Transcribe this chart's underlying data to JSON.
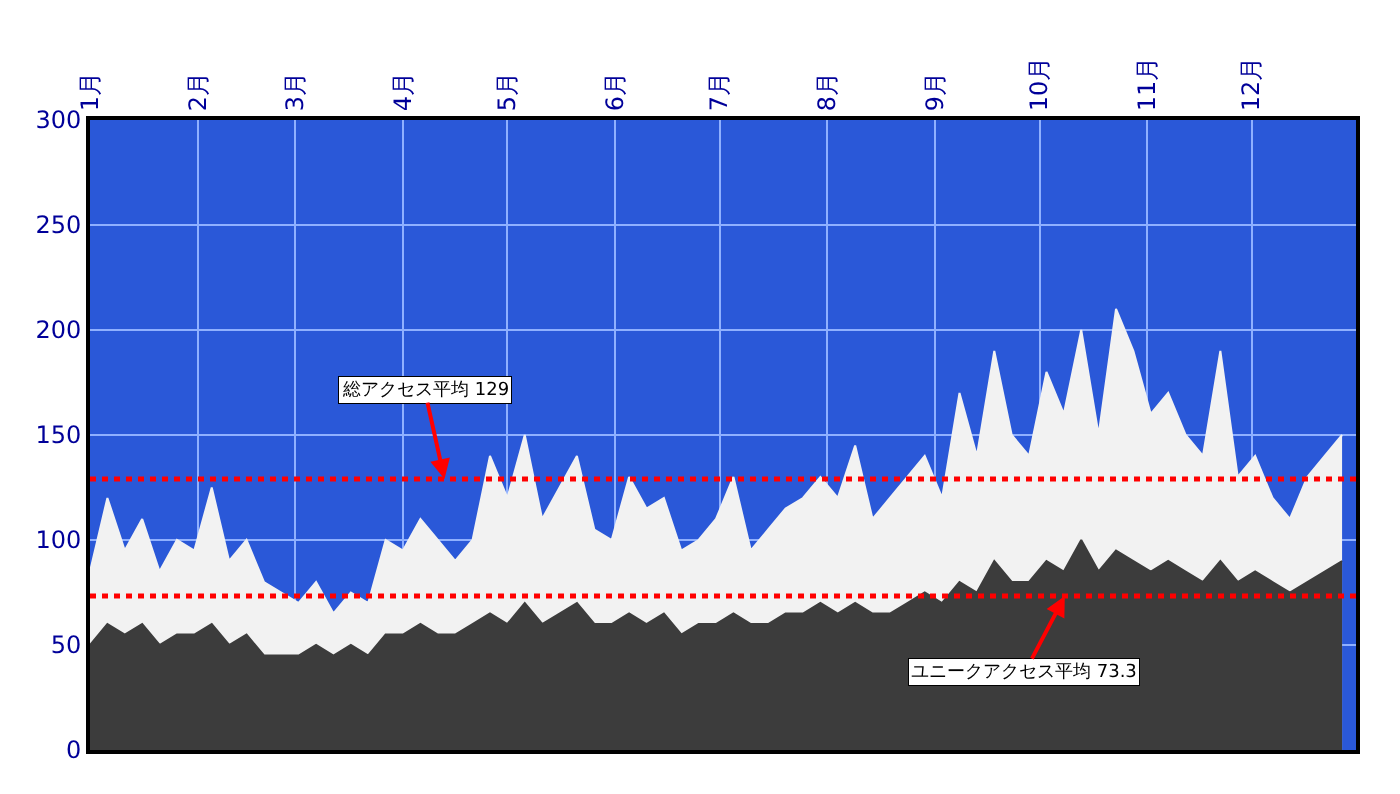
{
  "chart_data": {
    "type": "area",
    "x": [
      "--01-01",
      "--01-06",
      "--01-11",
      "--01-16",
      "--01-21",
      "--01-26",
      "--01-31",
      "--02-05",
      "--02-10",
      "--02-15",
      "--02-20",
      "--02-25",
      "--03-02",
      "--03-07",
      "--03-12",
      "--03-17",
      "--03-22",
      "--03-27",
      "--04-01",
      "--04-06",
      "--04-11",
      "--04-16",
      "--04-21",
      "--04-26",
      "--05-01",
      "--05-06",
      "--05-11",
      "--05-16",
      "--05-21",
      "--05-26",
      "--05-31",
      "--06-05",
      "--06-10",
      "--06-15",
      "--06-20",
      "--06-25",
      "--06-30",
      "--07-05",
      "--07-10",
      "--07-15",
      "--07-20",
      "--07-25",
      "--07-30",
      "--08-04",
      "--08-09",
      "--08-14",
      "--08-19",
      "--08-24",
      "--08-29",
      "--09-03",
      "--09-08",
      "--09-13",
      "--09-18",
      "--09-23",
      "--09-28",
      "--10-03",
      "--10-08",
      "--10-13",
      "--10-18",
      "--10-23",
      "--10-28",
      "--11-02",
      "--11-07",
      "--11-12",
      "--11-17",
      "--11-22",
      "--11-27",
      "--12-02",
      "--12-07",
      "--12-12",
      "--12-17",
      "--12-22",
      "--12-27"
    ],
    "series": [
      {
        "color": "#f2f2f2",
        "values": [
          85,
          120,
          95,
          110,
          85,
          100,
          95,
          125,
          90,
          100,
          80,
          75,
          70,
          80,
          65,
          75,
          70,
          100,
          95,
          110,
          100,
          90,
          100,
          140,
          120,
          150,
          110,
          125,
          140,
          105,
          100,
          130,
          115,
          120,
          95,
          100,
          110,
          130,
          95,
          105,
          115,
          120,
          130,
          120,
          145,
          110,
          120,
          130,
          140,
          120,
          170,
          140,
          190,
          150,
          140,
          180,
          160,
          200,
          150,
          210,
          190,
          160,
          170,
          150,
          140,
          190,
          130,
          140,
          120,
          110,
          130,
          140,
          150
        ]
      },
      {
        "color": "#3c3c3c",
        "values": [
          50,
          60,
          55,
          60,
          50,
          55,
          55,
          60,
          50,
          55,
          45,
          45,
          45,
          50,
          45,
          50,
          45,
          55,
          55,
          60,
          55,
          55,
          60,
          65,
          60,
          70,
          60,
          65,
          70,
          60,
          60,
          65,
          60,
          65,
          55,
          60,
          60,
          65,
          60,
          60,
          65,
          65,
          70,
          65,
          70,
          65,
          65,
          70,
          75,
          70,
          80,
          75,
          90,
          80,
          80,
          90,
          85,
          100,
          85,
          95,
          90,
          85,
          90,
          85,
          80,
          90,
          80,
          85,
          80,
          75,
          80,
          85,
          90
        ]
      }
    ],
    "xlim": [
      "--01-01",
      "--12-31"
    ],
    "xticks": [
      {
        "value": "--01-01",
        "label": "1月"
      },
      {
        "value": "--02-01",
        "label": "2月"
      },
      {
        "value": "--03-01",
        "label": "3月"
      },
      {
        "value": "--04-01",
        "label": "4月"
      },
      {
        "value": "--05-01",
        "label": "5月"
      },
      {
        "value": "--06-01",
        "label": "6月"
      },
      {
        "value": "--07-01",
        "label": "7月"
      },
      {
        "value": "--08-01",
        "label": "8月"
      },
      {
        "value": "--09-01",
        "label": "9月"
      },
      {
        "value": "--10-01",
        "label": "10月"
      },
      {
        "value": "--11-01",
        "label": "11月"
      },
      {
        "value": "--12-01",
        "label": "12月"
      }
    ],
    "ylim": [
      0,
      300
    ],
    "yticks": [
      0,
      50,
      100,
      150,
      200,
      250,
      300
    ],
    "ref_lines": [
      {
        "axis": "y",
        "value": 129,
        "label": "総アクセス平均 129",
        "color": "#ff0000",
        "line_style": "dotted"
      },
      {
        "axis": "y",
        "value": 73.3,
        "label": "ユニークアクセス平均 73.3",
        "color": "#ff0000",
        "line_style": "dotted"
      }
    ],
    "grid": true
  }
}
